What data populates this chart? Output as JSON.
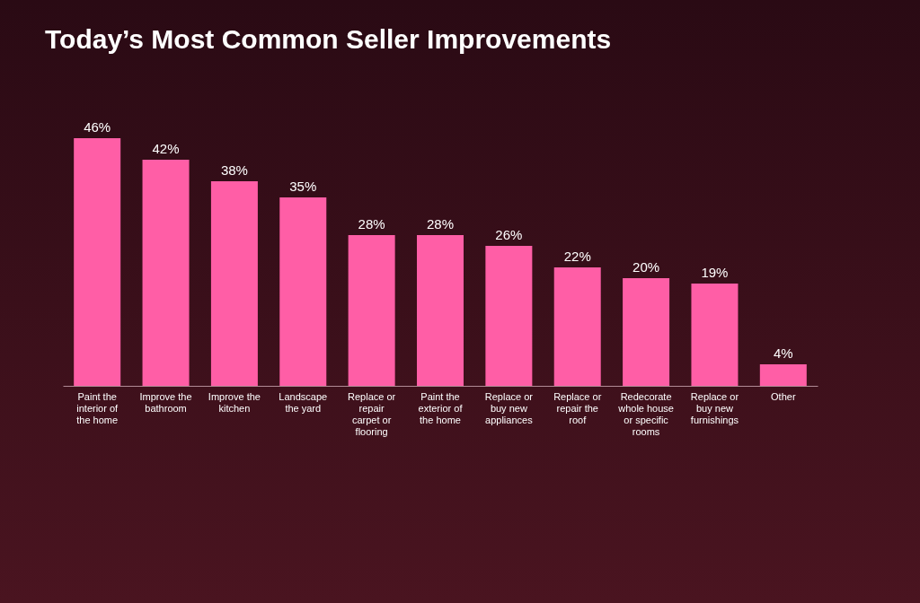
{
  "chart_data": {
    "type": "bar",
    "title": "Today’s Most Common Seller Improvements",
    "categories": [
      "Paint the interior of the home",
      "Improve the bathroom",
      "Improve the kitchen",
      "Landscape the yard",
      "Replace or repair carpet or flooring",
      "Paint the exterior of the home",
      "Replace or buy new appliances",
      "Replace or repair the roof",
      "Redecorate whole house or specific rooms",
      "Replace or buy new furnishings",
      "Other"
    ],
    "values": [
      46,
      42,
      38,
      35,
      28,
      28,
      26,
      22,
      20,
      19,
      4
    ],
    "value_labels": [
      "46%",
      "42%",
      "38%",
      "35%",
      "28%",
      "28%",
      "26%",
      "22%",
      "20%",
      "19%",
      "4%"
    ],
    "color": "#ff5ea6"
  }
}
